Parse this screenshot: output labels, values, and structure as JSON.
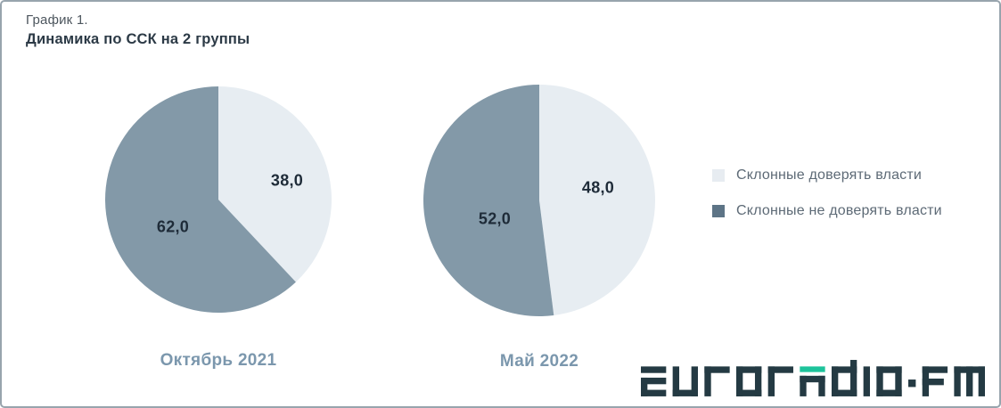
{
  "header": {
    "figure_label": "График 1.",
    "title": "Динамика по ССК на 2 группы"
  },
  "chart_data": {
    "type": "pie",
    "title": "Динамика по ССК на 2 группы",
    "figure_label": "График 1.",
    "legend_position": "right",
    "legend": [
      "Склонные доверять власти",
      "Склонные не доверять власти"
    ],
    "slice_colors": [
      "#e7edf2",
      "#8399a8"
    ],
    "legend_swatch_colors": [
      "#e7ecf1",
      "#5d7486"
    ],
    "pies": [
      {
        "label": "Октябрь 2021",
        "categories": [
          "Склонные доверять власти",
          "Склонные не доверять власти"
        ],
        "values": [
          38.0,
          62.0
        ],
        "display": [
          "38,0",
          "62,0"
        ]
      },
      {
        "label": "Май 2022",
        "categories": [
          "Склонные доверять власти",
          "Склонные не доверять власти"
        ],
        "values": [
          48.0,
          52.0
        ],
        "display": [
          "48,0",
          "52,0"
        ]
      }
    ]
  },
  "branding": {
    "logo_text": "euroradio.fm",
    "logo_dark": "#243a43",
    "logo_accent": "#1dc39b"
  }
}
